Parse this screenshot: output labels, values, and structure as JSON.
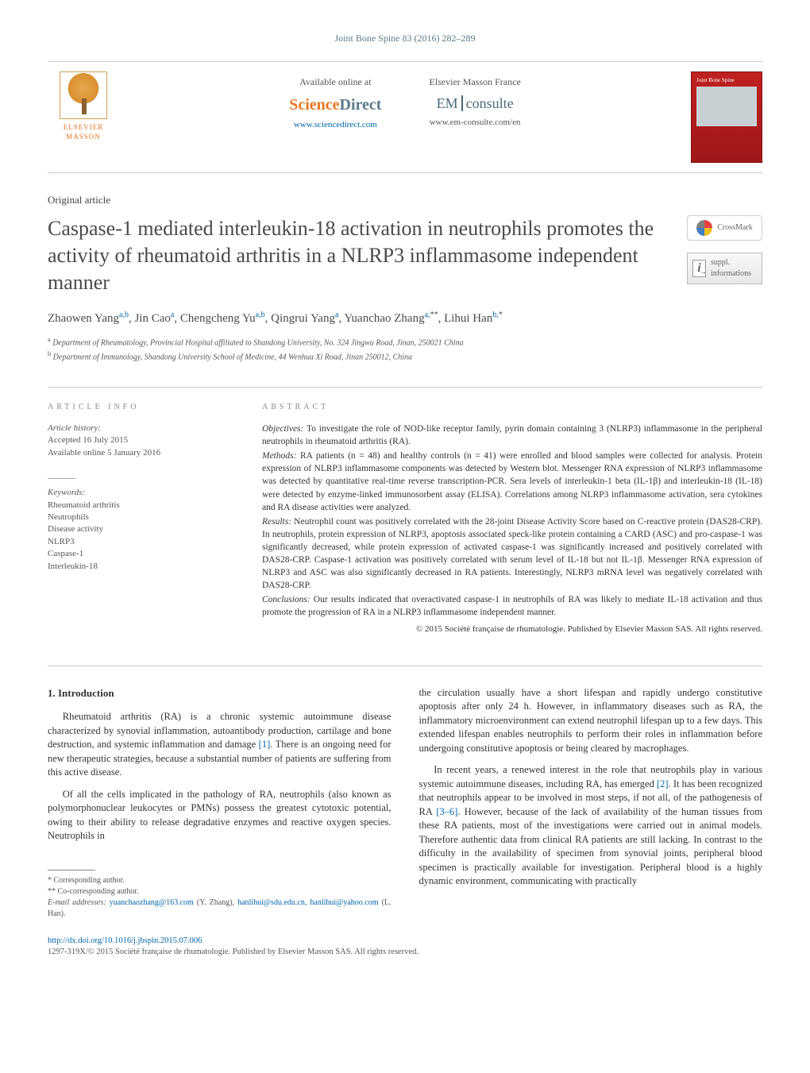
{
  "journal_ref": "Joint Bone Spine 83 (2016) 282–289",
  "banner": {
    "publisher_name": "ELSEVIER MASSON",
    "available_label": "Available online at",
    "sd_science": "Science",
    "sd_direct": "Direct",
    "sd_url": "www.sciencedirect.com",
    "emf_label": "Elsevier Masson France",
    "em_em": "EM",
    "em_consulte": "consulte",
    "em_url": "www.em-consulte.com/en",
    "cover_title": "Joint Bone Spine"
  },
  "article_type": "Original article",
  "title": "Caspase-1 mediated interleukin-18 activation in neutrophils promotes the activity of rheumatoid arthritis in a NLRP3 inflammasome independent manner",
  "badges": {
    "crossmark": "CrossMark",
    "suppl": "suppl. informations"
  },
  "authors_html": "Zhaowen Yang<sup class='aff-link'>a,b</sup>, Jin Cao<sup class='aff-link'>a</sup>, Chengcheng Yu<sup class='aff-link'>a,b</sup>, Qingrui Yang<sup class='aff-link'>a</sup>, Yuanchao Zhang<sup class='aff-link'>a,</sup><sup>**</sup>, Lihui Han<sup class='aff-link'>b,</sup><sup>*</sup>",
  "affiliations": {
    "a": "Department of Rheumatology, Provincial Hospital affiliated to Shandong University, No. 324 Jingwu Road, Jinan, 250021 China",
    "b": "Department of Immunology, Shandong University School of Medicine, 44 Wenhua Xi Road, Jinan 250012, China"
  },
  "article_info": {
    "section_label": "article info",
    "history_label": "Article history:",
    "accepted": "Accepted 16 July 2015",
    "online": "Available online 5 January 2016",
    "keywords_label": "Keywords:",
    "keywords": [
      "Rheumatoid arthritis",
      "Neutrophils",
      "Disease activity",
      "NLRP3",
      "Caspase-1",
      "Interleukin-18"
    ]
  },
  "abstract": {
    "section_label": "abstract",
    "objectives_label": "Objectives:",
    "objectives": " To investigate the role of NOD-like receptor family, pyrin domain containing 3 (NLRP3) inflammasome in the peripheral neutrophils in rheumatoid arthritis (RA).",
    "methods_label": "Methods:",
    "methods": " RA patients (n = 48) and healthy controls (n = 41) were enrolled and blood samples were collected for analysis. Protein expression of NLRP3 inflammasome components was detected by Western blot. Messenger RNA expression of NLRP3 inflammasome was detected by quantitative real-time reverse transcription-PCR. Sera levels of interleukin-1 beta (IL-1β) and interleukin-18 (IL-18) were detected by enzyme-linked immunosorbent assay (ELISA). Correlations among NLRP3 inflammasome activation, sera cytokines and RA disease activities were analyzed.",
    "results_label": "Results:",
    "results": " Neutrophil count was positively correlated with the 28-joint Disease Activity Score based on C-reactive protein (DAS28-CRP). In neutrophils, protein expression of NLRP3, apoptosis associated speck-like protein containing a CARD (ASC) and pro-caspase-1 was significantly decreased, while protein expression of activated caspase-1 was significantly increased and positively correlated with DAS28-CRP. Caspase-1 activation was positively correlated with serum level of IL-18 but not IL-1β. Messenger RNA expression of NLRP3 and ASC was also significantly decreased in RA patients. Interestingly, NLRP3 mRNA level was negatively correlated with DAS28-CRP.",
    "conclusions_label": "Conclusions:",
    "conclusions": " Our results indicated that overactivated caspase-1 in neutrophils of RA was likely to mediate IL-18 activation and thus promote the progression of RA in a NLRP3 inflammasome independent manner.",
    "copyright": "© 2015 Société française de rhumatologie. Published by Elsevier Masson SAS. All rights reserved."
  },
  "body": {
    "intro_heading": "1. Introduction",
    "p1": "Rheumatoid arthritis (RA) is a chronic systemic autoimmune disease characterized by synovial inflammation, autoantibody production, cartilage and bone destruction, and systemic inflammation and damage [1]. There is an ongoing need for new therapeutic strategies, because a substantial number of patients are suffering from this active disease.",
    "p2": "Of all the cells implicated in the pathology of RA, neutrophils (also known as polymorphonuclear leukocytes or PMNs) possess the greatest cytotoxic potential, owing to their ability to release degradative enzymes and reactive oxygen species. Neutrophils in",
    "p3": "the circulation usually have a short lifespan and rapidly undergo constitutive apoptosis after only 24 h. However, in inflammatory diseases such as RA, the inflammatory microenvironment can extend neutrophil lifespan up to a few days. This extended lifespan enables neutrophils to perform their roles in inflammation before undergoing constitutive apoptosis or being cleared by macrophages.",
    "p4": "In recent years, a renewed interest in the role that neutrophils play in various systemic autoimmune diseases, including RA, has emerged [2]. It has been recognized that neutrophils appear to be involved in most steps, if not all, of the pathogenesis of RA [3–6]. However, because of the lack of availability of the human tissues from these RA patients, most of the investigations were carried out in animal models. Therefore authentic data from clinical RA patients are still lacking. In contrast to the difficulty in the availability of specimen from synovial joints, peripheral blood specimen is practically available for investigation. Peripheral blood is a highly dynamic environment, communicating with practically"
  },
  "footnotes": {
    "corr": "Corresponding author.",
    "cocorr": "Co-corresponding author.",
    "email_label": "E-mail addresses:",
    "email1": "yuanchaozhang@163.com",
    "email1_who": " (Y. Zhang), ",
    "email2": "hanlihui@sdu.edu.cn",
    "email2_sep": ", ",
    "email3": "hanlihui@yahoo.com",
    "email3_who": " (L. Han)."
  },
  "footer": {
    "doi": "http://dx.doi.org/10.1016/j.jbspin.2015.07.006",
    "issn_line": "1297-319X/© 2015 Société française de rhumatologie. Published by Elsevier Masson SAS. All rights reserved."
  },
  "colors": {
    "link": "#0066aa",
    "accent": "#e87722",
    "teal": "#5a7a8a"
  }
}
